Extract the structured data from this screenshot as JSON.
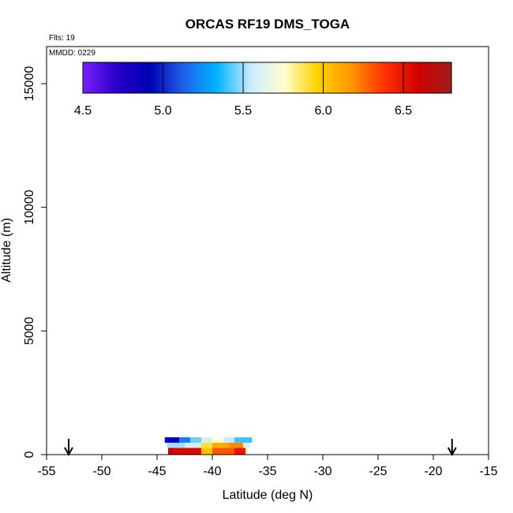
{
  "chart_data": {
    "type": "heatmap",
    "title": "ORCAS RF19 DMS_TOGA",
    "flights_label": "Flts: 19",
    "date_label": "MMDD: 0229",
    "xlabel": "Latitude (deg N)",
    "ylabel": "Altitude (m)",
    "xlim": [
      -55,
      -15
    ],
    "ylim": [
      0,
      16500
    ],
    "x_ticks": [
      -55,
      -50,
      -45,
      -40,
      -35,
      -30,
      -25,
      -20,
      -15
    ],
    "x_tick_labels": [
      "-55",
      "-50",
      "-45",
      "-40",
      "-35",
      "-30",
      "-25",
      "-20",
      "-15"
    ],
    "y_ticks": [
      0,
      5000,
      10000,
      15000
    ],
    "y_tick_labels": [
      "0",
      "5000",
      "10000",
      "15000"
    ],
    "colorbar": {
      "min": 4.5,
      "max": 6.8,
      "ticks": [
        4.5,
        5.0,
        5.5,
        6.0,
        6.5
      ],
      "tick_labels": [
        "4.5",
        "5.0",
        "5.5",
        "6.0",
        "6.5"
      ],
      "colors": [
        "#7b1fff",
        "#2a00c8",
        "#0000b4",
        "#1f5fe8",
        "#00b4ff",
        "#c8eaff",
        "#ffffd0",
        "#ffd200",
        "#ff9600",
        "#ff3200",
        "#d20000",
        "#a01e1e"
      ]
    },
    "arrows_at_latitude": [
      -53,
      -18.3
    ],
    "bands": [
      {
        "altitude": [
          480,
          700
        ],
        "cells": [
          {
            "lat": [
              -44.3,
              -43.0
            ],
            "value": 4.9
          },
          {
            "lat": [
              -43.0,
              -42.0
            ],
            "value": 5.2
          },
          {
            "lat": [
              -42.0,
              -41.0
            ],
            "value": 5.45
          },
          {
            "lat": [
              -41.0,
              -40.0
            ],
            "value": 5.6
          },
          {
            "lat": [
              -40.0,
              -39.0
            ],
            "value": 5.75
          },
          {
            "lat": [
              -39.0,
              -38.0
            ],
            "value": 5.55
          },
          {
            "lat": [
              -38.0,
              -36.4
            ],
            "value": 5.4
          }
        ]
      },
      {
        "altitude": [
          270,
          480
        ],
        "cells": [
          {
            "lat": [
              -44.1,
              -42.5
            ],
            "value": 5.5
          },
          {
            "lat": [
              -42.5,
              -41.0
            ],
            "value": 5.6
          },
          {
            "lat": [
              -41.0,
              -40.0
            ],
            "value": 5.9
          },
          {
            "lat": [
              -40.0,
              -38.5
            ],
            "value": 6.1
          },
          {
            "lat": [
              -38.5,
              -37.2
            ],
            "value": 6.2
          },
          {
            "lat": [
              -37.2,
              -36.6
            ],
            "value": 5.6
          }
        ]
      },
      {
        "altitude": [
          0,
          270
        ],
        "cells": [
          {
            "lat": [
              -44.0,
              -43.5
            ],
            "value": 6.6
          },
          {
            "lat": [
              -43.5,
              -41.0
            ],
            "value": 6.55
          },
          {
            "lat": [
              -41.0,
              -40.0
            ],
            "value": 6.0
          },
          {
            "lat": [
              -40.0,
              -38.0
            ],
            "value": 6.3
          },
          {
            "lat": [
              -38.0,
              -37.0
            ],
            "value": 6.5
          },
          {
            "lat": [
              -37.0,
              -36.8
            ],
            "value": 5.8
          }
        ]
      }
    ]
  }
}
